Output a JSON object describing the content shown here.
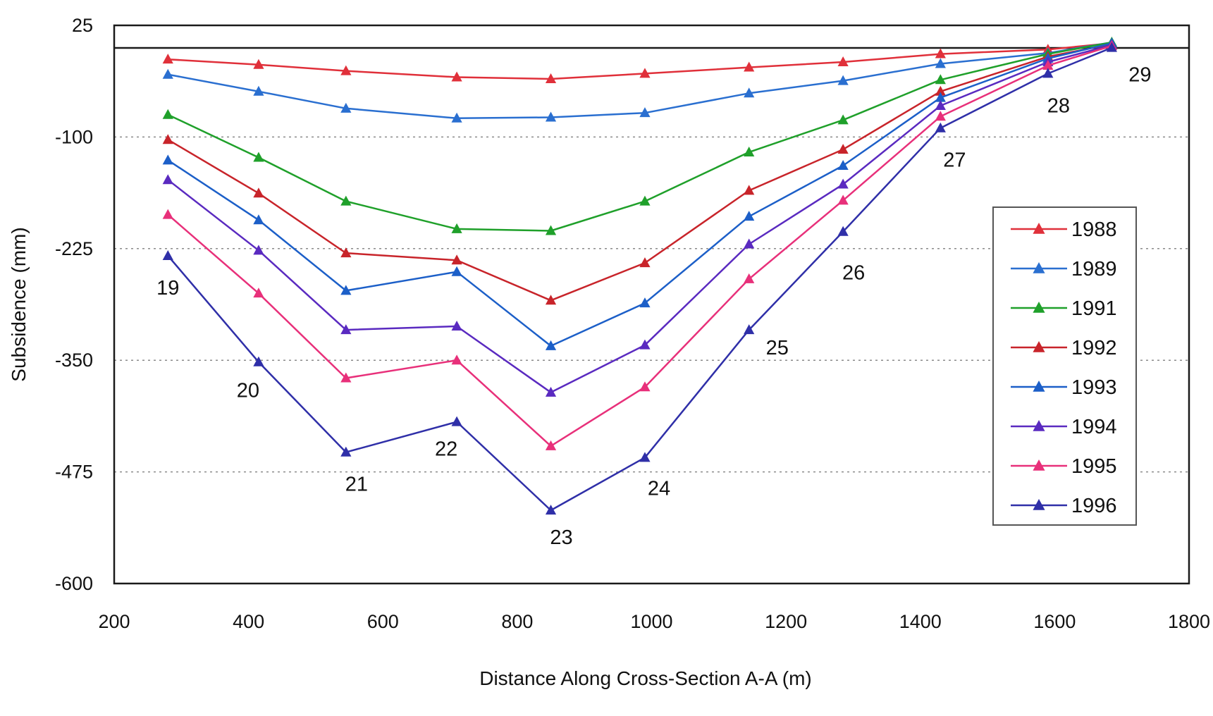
{
  "chart_data": {
    "type": "line",
    "title": "",
    "xlabel": "Distance Along Cross-Section A-A (m)",
    "ylabel": "Subsidence (mm)",
    "xlim": [
      200,
      1800
    ],
    "ylim": [
      -600,
      25
    ],
    "xticks": [
      200,
      400,
      600,
      800,
      1000,
      1200,
      1400,
      1600,
      1800
    ],
    "yticks": [
      -600,
      -475,
      -350,
      -225,
      -100,
      25
    ],
    "grid": "horizontal dotted",
    "legend_position": "right",
    "marker": "triangle",
    "x": [
      280,
      415,
      545,
      710,
      850,
      990,
      1145,
      1285,
      1430,
      1590,
      1685
    ],
    "point_labels": [
      "19",
      "20",
      "21",
      "22",
      "23",
      "24",
      "25",
      "26",
      "27",
      "28",
      "29"
    ],
    "series": [
      {
        "name": "1988",
        "color": "#e0303a",
        "values": [
          -13,
          -19,
          -26,
          -33,
          -35,
          -29,
          -22,
          -16,
          -7,
          -2,
          5
        ]
      },
      {
        "name": "1989",
        "color": "#2a6fd0",
        "values": [
          -30,
          -49,
          -68,
          -79,
          -78,
          -73,
          -51,
          -37,
          -18,
          -6,
          6
        ]
      },
      {
        "name": "1991",
        "color": "#1fa02a",
        "values": [
          -75,
          -123,
          -172,
          -203,
          -205,
          -172,
          -117,
          -81,
          -36,
          -7,
          6
        ]
      },
      {
        "name": "1992",
        "color": "#c8242a",
        "values": [
          -103,
          -163,
          -230,
          -238,
          -283,
          -241,
          -160,
          -114,
          -49,
          -10,
          4
        ]
      },
      {
        "name": "1993",
        "color": "#1c5fc8",
        "values": [
          -126,
          -193,
          -272,
          -251,
          -334,
          -286,
          -189,
          -132,
          -56,
          -12,
          5
        ]
      },
      {
        "name": "1994",
        "color": "#5a2ac0",
        "values": [
          -148,
          -227,
          -316,
          -312,
          -386,
          -333,
          -220,
          -153,
          -65,
          -16,
          3
        ]
      },
      {
        "name": "1995",
        "color": "#e8307a",
        "values": [
          -187,
          -275,
          -370,
          -350,
          -446,
          -380,
          -259,
          -171,
          -77,
          -20,
          2
        ]
      },
      {
        "name": "1996",
        "color": "#2f2fa8",
        "values": [
          -233,
          -352,
          -453,
          -419,
          -518,
          -459,
          -316,
          -206,
          -90,
          -29,
          0
        ]
      }
    ]
  }
}
